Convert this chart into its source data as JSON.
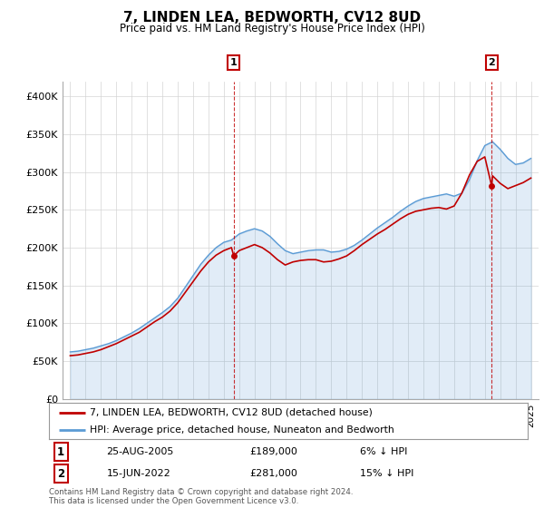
{
  "title": "7, LINDEN LEA, BEDWORTH, CV12 8UD",
  "subtitle": "Price paid vs. HM Land Registry's House Price Index (HPI)",
  "legend_line1": "7, LINDEN LEA, BEDWORTH, CV12 8UD (detached house)",
  "legend_line2": "HPI: Average price, detached house, Nuneaton and Bedworth",
  "footer": "Contains HM Land Registry data © Crown copyright and database right 2024.\nThis data is licensed under the Open Government Licence v3.0.",
  "annotation1_date": "25-AUG-2005",
  "annotation1_price": "£189,000",
  "annotation1_hpi": "6% ↓ HPI",
  "annotation2_date": "15-JUN-2022",
  "annotation2_price": "£281,000",
  "annotation2_hpi": "15% ↓ HPI",
  "sale1_x": 2005.65,
  "sale1_y": 189000,
  "sale2_x": 2022.45,
  "sale2_y": 281000,
  "hpi_color": "#5b9bd5",
  "price_color": "#c00000",
  "annotation_box_color": "#c00000",
  "hpi_years": [
    1995,
    1995.5,
    1996,
    1996.5,
    1997,
    1997.5,
    1998,
    1998.5,
    1999,
    1999.5,
    2000,
    2000.5,
    2001,
    2001.5,
    2002,
    2002.5,
    2003,
    2003.5,
    2004,
    2004.5,
    2005,
    2005.5,
    2006,
    2006.5,
    2007,
    2007.5,
    2008,
    2008.5,
    2009,
    2009.5,
    2010,
    2010.5,
    2011,
    2011.5,
    2012,
    2012.5,
    2013,
    2013.5,
    2014,
    2014.5,
    2015,
    2015.5,
    2016,
    2016.5,
    2017,
    2017.5,
    2018,
    2018.5,
    2019,
    2019.5,
    2020,
    2020.5,
    2021,
    2021.5,
    2022,
    2022.5,
    2023,
    2023.5,
    2024,
    2024.5,
    2025
  ],
  "hpi_values": [
    62000,
    63000,
    65000,
    67000,
    70000,
    73000,
    77000,
    82000,
    87000,
    93000,
    100000,
    107000,
    114000,
    122000,
    133000,
    148000,
    163000,
    178000,
    190000,
    200000,
    207000,
    210000,
    218000,
    222000,
    225000,
    222000,
    215000,
    205000,
    196000,
    192000,
    194000,
    196000,
    197000,
    197000,
    194000,
    195000,
    198000,
    203000,
    210000,
    218000,
    226000,
    233000,
    240000,
    248000,
    255000,
    261000,
    265000,
    267000,
    269000,
    271000,
    268000,
    272000,
    290000,
    315000,
    335000,
    340000,
    330000,
    318000,
    310000,
    312000,
    318000
  ],
  "price_years": [
    1995,
    1995.5,
    1996,
    1996.5,
    1997,
    1997.5,
    1998,
    1998.5,
    1999,
    1999.5,
    2000,
    2000.5,
    2001,
    2001.5,
    2002,
    2002.5,
    2003,
    2003.5,
    2004,
    2004.5,
    2005,
    2005.5,
    2005.65,
    2006,
    2006.5,
    2007,
    2007.5,
    2008,
    2008.5,
    2009,
    2009.5,
    2010,
    2010.5,
    2011,
    2011.5,
    2012,
    2012.5,
    2013,
    2013.5,
    2014,
    2014.5,
    2015,
    2015.5,
    2016,
    2016.5,
    2017,
    2017.5,
    2018,
    2018.5,
    2019,
    2019.5,
    2020,
    2020.5,
    2021,
    2021.5,
    2022,
    2022.45,
    2022.5,
    2023,
    2023.5,
    2024,
    2024.5,
    2025
  ],
  "price_values": [
    57000,
    58000,
    60000,
    62000,
    65000,
    69000,
    73000,
    78000,
    83000,
    88000,
    95000,
    102000,
    108000,
    116000,
    127000,
    141000,
    155000,
    169000,
    181000,
    190000,
    196000,
    200000,
    189000,
    196000,
    200000,
    204000,
    200000,
    193000,
    184000,
    177000,
    181000,
    183000,
    184000,
    184000,
    181000,
    182000,
    185000,
    189000,
    196000,
    204000,
    211000,
    218000,
    224000,
    231000,
    238000,
    244000,
    248000,
    250000,
    252000,
    253000,
    251000,
    255000,
    272000,
    296000,
    314000,
    320000,
    281000,
    295000,
    285000,
    278000,
    282000,
    286000,
    292000
  ],
  "ylim": [
    0,
    420000
  ],
  "xlim": [
    1994.5,
    2025.5
  ],
  "yticks": [
    0,
    50000,
    100000,
    150000,
    200000,
    250000,
    300000,
    350000,
    400000
  ],
  "xtick_years": [
    1995,
    1996,
    1997,
    1998,
    1999,
    2000,
    2001,
    2002,
    2003,
    2004,
    2005,
    2006,
    2007,
    2008,
    2009,
    2010,
    2011,
    2012,
    2013,
    2014,
    2015,
    2016,
    2017,
    2018,
    2019,
    2020,
    2021,
    2022,
    2023,
    2024,
    2025
  ],
  "background_color": "#ffffff",
  "grid_color": "#d4d4d4"
}
